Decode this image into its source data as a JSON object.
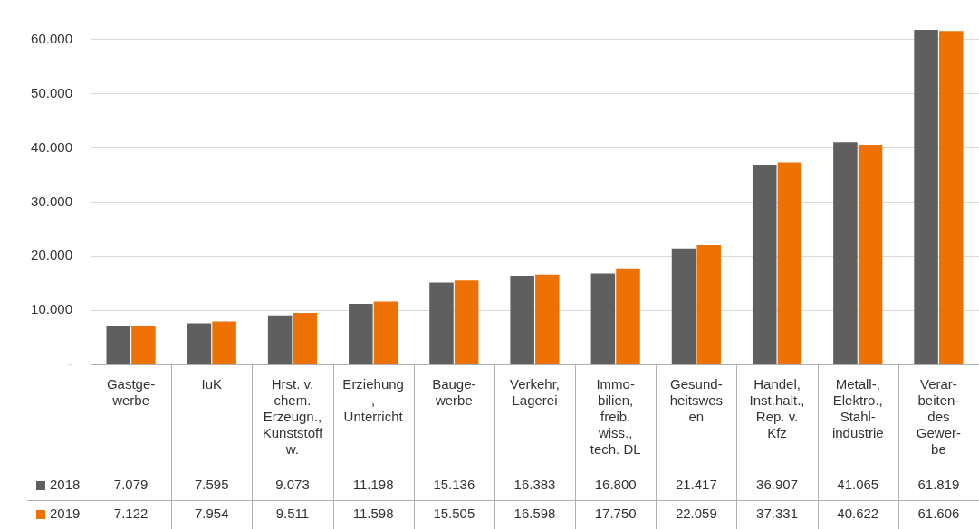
{
  "chart_data": {
    "type": "bar",
    "categories": [
      "Gastge-\nwerbe",
      "IuK",
      "Hrst. v.\nchem.\nErzeugn.,\nKunststoff\nw.",
      "Erziehung\n,\nUnterricht",
      "Bauge-\nwerbe",
      "Verkehr,\nLagerei",
      "Immo-\nbilien,\nfreib.\nwiss.,\ntech. DL",
      "Gesund-\nheitswes\nen",
      "Handel,\nInst.halt.,\nRep. v.\nKfz",
      "Metall-,\nElektro.,\nStahl-\nindustrie",
      "Verar-\nbeiten-\ndes\nGewer-\nbe"
    ],
    "series": [
      {
        "name": "2018",
        "color": "#5f5f5f",
        "values": [
          7079,
          7595,
          9073,
          11198,
          15136,
          16383,
          16800,
          21417,
          36907,
          41065,
          61819
        ],
        "value_labels": [
          "7.079",
          "7.595",
          "9.073",
          "11.198",
          "15.136",
          "16.383",
          "16.800",
          "21.417",
          "36.907",
          "41.065",
          "61.819"
        ]
      },
      {
        "name": "2019",
        "color": "#ee7203",
        "values": [
          7122,
          7954,
          9511,
          11598,
          15505,
          16598,
          17750,
          22059,
          37331,
          40622,
          61606
        ],
        "value_labels": [
          "7.122",
          "7.954",
          "9.511",
          "11.598",
          "15.505",
          "16.598",
          "17.750",
          "22.059",
          "37.331",
          "40.622",
          "61.606"
        ]
      }
    ],
    "ylim": [
      0,
      62500
    ],
    "yticks": [
      {
        "value": 0,
        "label": "-"
      },
      {
        "value": 10000,
        "label": "10.000"
      },
      {
        "value": 20000,
        "label": "20.000"
      },
      {
        "value": 30000,
        "label": "30.000"
      },
      {
        "value": 40000,
        "label": "40.000"
      },
      {
        "value": 50000,
        "label": "50.000"
      },
      {
        "value": 60000,
        "label": "60.000"
      }
    ],
    "grid": "y",
    "legend": "bottom left"
  }
}
